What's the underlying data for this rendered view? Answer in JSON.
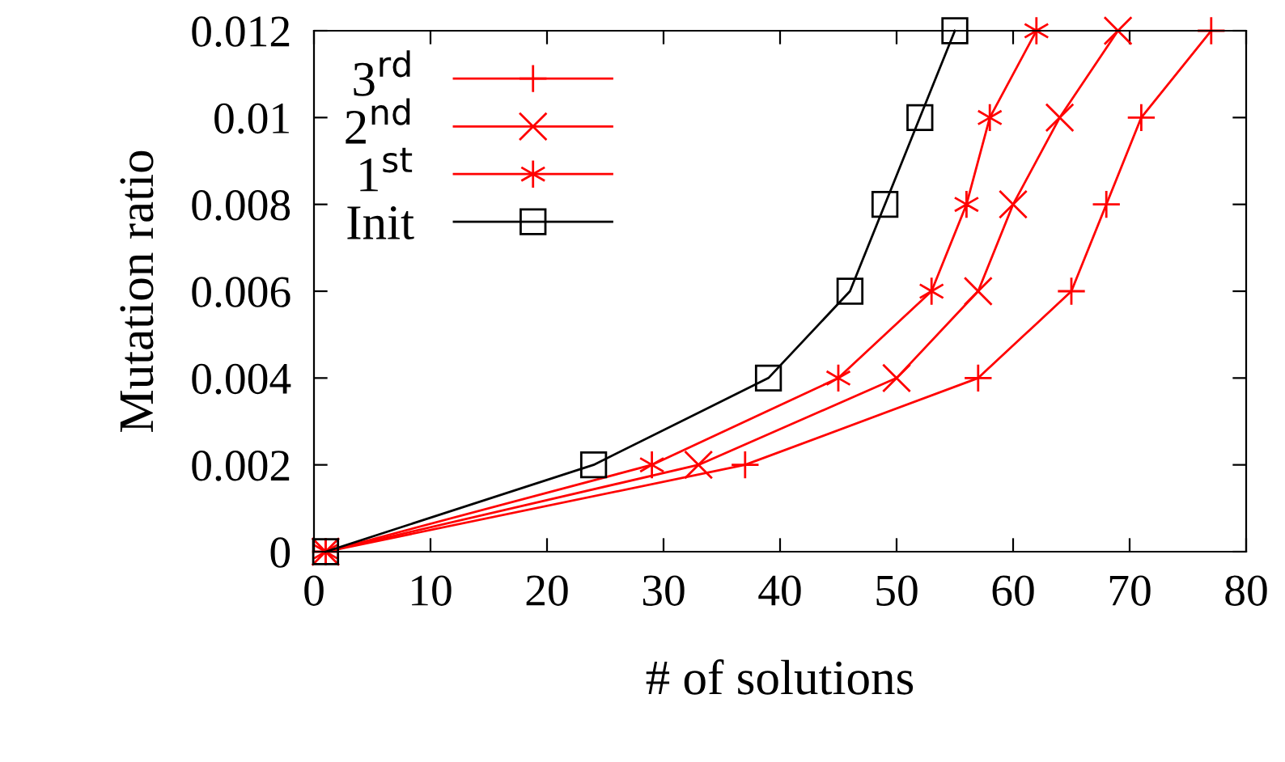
{
  "chart_data": {
    "type": "line",
    "xlabel": "# of solutions",
    "ylabel": "Mutation ratio",
    "series": [
      {
        "name": "3$^{rd}$",
        "color": "#ff0000",
        "marker": "plus",
        "x": [
          1,
          37,
          57,
          65,
          68,
          71,
          77
        ],
        "values": [
          0,
          0.002,
          0.004,
          0.006,
          0.008,
          0.01,
          0.012
        ]
      },
      {
        "name": "2$^{nd}$",
        "color": "#ff0000",
        "marker": "x",
        "x": [
          1,
          33,
          50,
          57,
          60,
          64,
          69
        ],
        "values": [
          0,
          0.002,
          0.004,
          0.006,
          0.008,
          0.01,
          0.012
        ]
      },
      {
        "name": "1$^{st}$",
        "color": "#ff0000",
        "marker": "cross",
        "x": [
          1,
          29,
          45,
          53,
          56,
          58,
          62
        ],
        "values": [
          0,
          0.002,
          0.004,
          0.006,
          0.008,
          0.01,
          0.012
        ]
      },
      {
        "name": "Init",
        "color": "#000000",
        "marker": "square",
        "x": [
          1,
          24,
          39,
          46,
          49,
          52,
          55
        ],
        "values": [
          0,
          0.002,
          0.004,
          0.006,
          0.008,
          0.01,
          0.012
        ]
      }
    ],
    "xlim": [
      0,
      80
    ],
    "xticks": [
      0,
      10,
      20,
      30,
      40,
      50,
      60,
      70,
      80
    ],
    "ylim": [
      0,
      0.012
    ],
    "yticks": [
      0,
      0.002,
      0.004,
      0.006,
      0.008,
      0.01,
      0.012
    ],
    "grid": false,
    "legend": "top left",
    "line_style": "solid"
  }
}
